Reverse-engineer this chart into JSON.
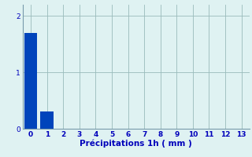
{
  "bars": [
    {
      "x": 0,
      "height": 1.7
    },
    {
      "x": 1,
      "height": 0.3
    }
  ],
  "bar_color": "#0044bb",
  "bar_width": 0.8,
  "xlim": [
    -0.5,
    13.5
  ],
  "ylim": [
    0,
    2.2
  ],
  "xticks": [
    0,
    1,
    2,
    3,
    4,
    5,
    6,
    7,
    8,
    9,
    10,
    11,
    12,
    13
  ],
  "yticks": [
    0,
    1,
    2
  ],
  "xlabel": "Précipitations 1h ( mm )",
  "background_color": "#dff2f2",
  "grid_color": "#99bbbb",
  "tick_color": "#0000bb",
  "label_color": "#0000bb",
  "xlabel_fontsize": 7.5,
  "tick_fontsize": 6.5,
  "spine_color": "#7799aa"
}
